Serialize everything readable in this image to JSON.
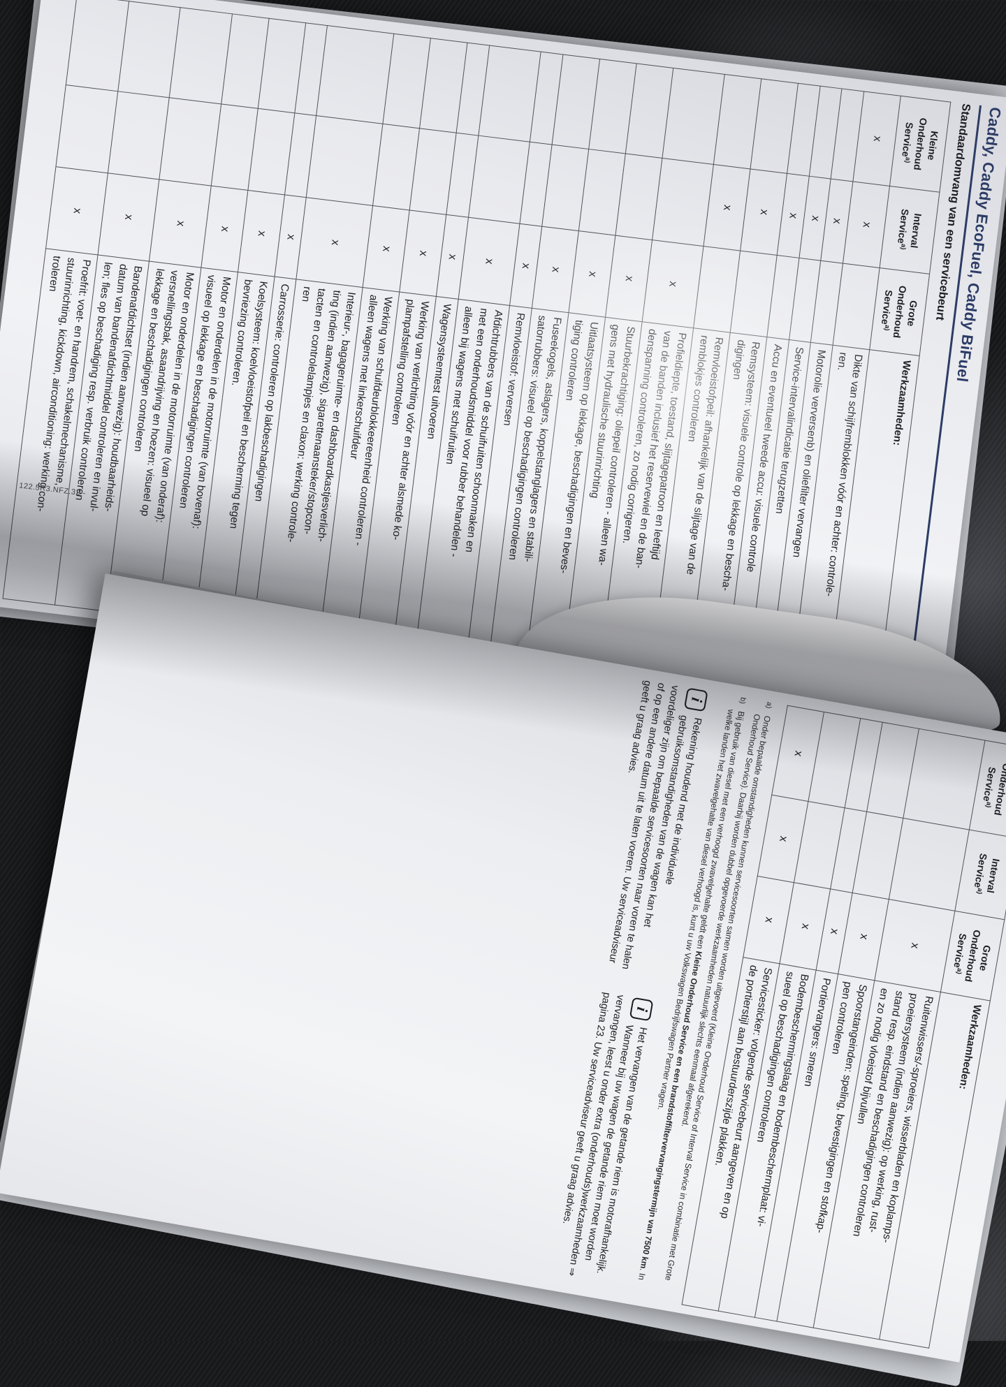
{
  "book": {
    "mark_char": "x",
    "print_code": "122.5R3.NFZ.32 -",
    "accent_color": "#2c3c66",
    "left_page": {
      "title": "Caddy, Caddy EcoFuel, Caddy BiFuel",
      "subtitle": "Standaardomvang van een servicebeurt",
      "table": {
        "sup": "a)",
        "columns": [
          {
            "lines": [
              "Kleine",
              "Onderhoud",
              "Service"
            ]
          },
          {
            "lines": [
              "Interval",
              "Service"
            ]
          },
          {
            "lines": [
              "Grote",
              "Onderhoud",
              "Service"
            ]
          }
        ],
        "tasks_header": "Werkzaamheden:",
        "rows": [
          {
            "lines": [
              "Dikte van schijfremblokken vóór en achter: controle-",
              "ren."
            ],
            "kleine": true,
            "interval": true,
            "grote": false
          },
          {
            "lines": [
              "Motorolie verversenb) en oliefilter vervangen"
            ],
            "kleine": false,
            "interval": true,
            "grote": false
          },
          {
            "lines": [
              "Service-intervalindicatie terugzetten"
            ],
            "kleine": false,
            "interval": true,
            "grote": false
          },
          {
            "lines": [
              "Accu en eventueel tweede accu: visuele controle"
            ],
            "kleine": false,
            "interval": true,
            "grote": false
          },
          {
            "lines": [
              "Remsysteem: visuele controle op lekkage en bescha-",
              "digingen"
            ],
            "kleine": false,
            "interval": true,
            "grote": false
          },
          {
            "lines": [
              "Remvloeistofpeil: afhankelijk van de slijtage van de",
              "remblokjes controleren"
            ],
            "kleine": false,
            "interval": true,
            "grote": false
          },
          {
            "lines": [
              "Profieldiepte, toestand, slijtagepatroon en leeftijd",
              "van de banden inclusief het reservewiel en de ban-",
              "denspanning controleren, zo nodig corrigeren."
            ],
            "kleine": false,
            "interval": false,
            "grote": true
          },
          {
            "lines": [
              "Stuurbekrachtiging: oliepeil controleren - alleen wa-",
              "gens met hydraulische stuurinrichting"
            ],
            "kleine": false,
            "interval": false,
            "grote": true
          },
          {
            "lines": [
              "Uitlaatsysteem op lekkage, beschadigingen en beves-",
              "tiging controleren"
            ],
            "kleine": false,
            "interval": false,
            "grote": true
          },
          {
            "lines": [
              "Fuseekogels, aslagers, koppelstanglagers en stabili-",
              "satorrubbers: visueel op beschadigingen controleren"
            ],
            "kleine": false,
            "interval": false,
            "grote": true
          },
          {
            "lines": [
              "Remvloeistof: verversen"
            ],
            "kleine": false,
            "interval": false,
            "grote": true
          },
          {
            "lines": [
              "Afdichtrubbers van de schuifruiten schoonmaken en",
              "met een onderhoudsmiddel voor rubber behandelen -",
              "alleen bij wagens met schuifruiten"
            ],
            "kleine": false,
            "interval": false,
            "grote": true
          },
          {
            "lines": [
              "Wagensysteemtest uitvoeren"
            ],
            "kleine": false,
            "interval": false,
            "grote": true
          },
          {
            "lines": [
              "Werking van verlichting vóór en achter alsmede ko-",
              "plampafstelling controleren"
            ],
            "kleine": false,
            "interval": false,
            "grote": true
          },
          {
            "lines": [
              "Werking van schuifdeurblokkeereenheid controleren -",
              "alleen wagens met linkerschuifdeur"
            ],
            "kleine": false,
            "interval": false,
            "grote": true
          },
          {
            "lines": [
              "Interieur-, bagageruimte- en dashboardkastjesverlich-",
              "ting (indien aanwezig), sigarettenaansteker/stopcon-",
              "tacten en controlelampjes en claxon: werking controle-",
              "ren"
            ],
            "kleine": false,
            "interval": false,
            "grote": true
          },
          {
            "lines": [
              "Carrosserie: controleren op lakbeschadigingen"
            ],
            "kleine": false,
            "interval": false,
            "grote": true
          },
          {
            "lines": [
              "Koelsysteem: koelvloeistofpeil en bescherming tegen",
              "bevriezing controleren."
            ],
            "kleine": false,
            "interval": false,
            "grote": true
          },
          {
            "lines": [
              "Motor en onderdelen in de motorruimte (van bovenaf):",
              "visueel op lekkage en beschadigingen controleren"
            ],
            "kleine": false,
            "interval": false,
            "grote": true
          },
          {
            "lines": [
              "Motor en onderdelen in de motorruimte (van onderaf):",
              "versnellingsbak, asaandrijving en hoezen: visueel op",
              "lekkage en beschadigingen controleren"
            ],
            "kleine": false,
            "interval": false,
            "grote": true
          },
          {
            "lines": [
              "Bandenafdichtset (indien aanwezig): houdbaarheids-",
              "datum van bandenafdichtmiddel controleren en invul-",
              "len; fles op beschadiging resp. verbruik controleren"
            ],
            "kleine": false,
            "interval": false,
            "grote": true
          },
          {
            "lines": [
              "Proefrit: voet- en handrem, schakelmechanisme,",
              "stuurinrichting, kickdown, airconditioning: werking con-",
              "troleren"
            ],
            "kleine": false,
            "interval": false,
            "grote": true
          }
        ]
      }
    },
    "right_page": {
      "table": {
        "rows": [
          {
            "lines": [
              "Ruitenwissers/-sproeiers, wisserbladen en koplamps-",
              "proeiersysteem (indien aanwezig): op werking, rust-",
              "stand resp. eindstand en beschadigingen controleren",
              "en zo nodig vloeistof bijvullen"
            ],
            "kleine": false,
            "interval": false,
            "grote": true
          },
          {
            "lines": [
              "Spoorstangeinden: speling, bevestigingen en stofkap-",
              "pen controleren"
            ],
            "kleine": false,
            "interval": false,
            "grote": true
          },
          {
            "lines": [
              "Portiervangers: smeren"
            ],
            "kleine": false,
            "interval": false,
            "grote": true
          },
          {
            "lines": [
              "Bodembeschermingslaag en bodembeschermplaat: vi-",
              "sueel op beschadigingen controleren"
            ],
            "kleine": false,
            "interval": false,
            "grote": true
          },
          {
            "lines": [
              "Servicesticker: volgende servicebeurt aangeven en op",
              "de portierstijl aan bestuurderszijde plakken."
            ],
            "kleine": true,
            "interval": true,
            "grote": true
          }
        ]
      },
      "footnotes": {
        "a_marker": "a)",
        "a_text": "Onder bepaalde omstandigheden kunnen servicesoorten samen worden uitgevoerd (Kleine Onderhoud Service of Interval Service in combinatie met Grote Onderhoud Service). Daarbij worden dubbel opgevoerde werkzaamheden natuurlijk slechts eenmaal afgerekend.",
        "b_marker": "b)",
        "b_pre": "Bij gebruik van diesel met een verhoogd zwavelgehalte geldt een ",
        "b_bold": "Kleine Onderhoud Service en een brandstoffiltervervangingstermijn van 7500 km",
        "b_post": ". In welke landen het zwavelgehalte van diesel verhoogd is, kunt u uw Volkswagen Bedrijfswagen Partner vragen."
      },
      "info_boxes": [
        {
          "icon": "i",
          "text": "Rekening houdend met de individuele gebruiksomstandigheden van de wagen kan het voordeliger zijn om bepaalde servicesoorten naar voren te halen of op een andere datum uit te laten voeren. Uw serviceadviseur geeft u graag advies."
        },
        {
          "icon": "i",
          "text": "Het vervangen van de getande riem is motorafhankelijk. Wanneer bij uw wagen de getande riem moet worden vervangen, leest u onder extra (onderhouds)werkzaamheden ⇒ pagina 23. Uw serviceadviseur geeft u graag advies."
        }
      ]
    }
  }
}
